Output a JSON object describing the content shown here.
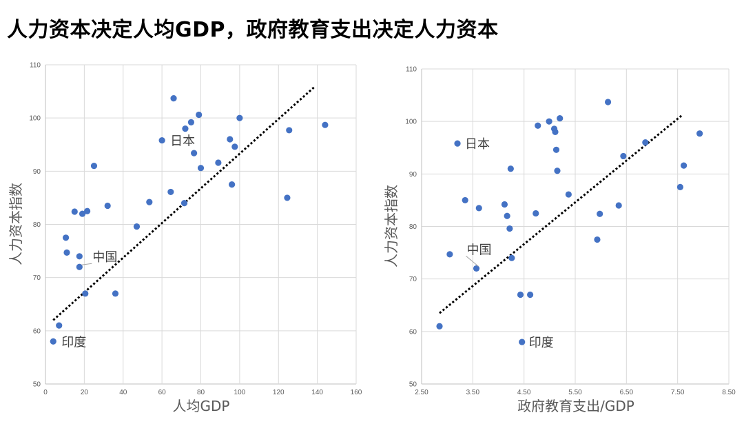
{
  "page": {
    "title": "人力资本决定人均GDP，政府教育支出决定人力资本"
  },
  "colors": {
    "point": "#4472c4",
    "trend": "#000000",
    "grid": "#d9d9d9",
    "text": "#595959"
  },
  "chart_data": [
    {
      "type": "scatter",
      "xlabel": "人均GDP",
      "ylabel": "人力资本指数",
      "xlim": [
        0,
        160
      ],
      "ylim": [
        50,
        110
      ],
      "xticks": [
        "0",
        "20",
        "40",
        "60",
        "80",
        "100",
        "120",
        "140",
        "160"
      ],
      "yticks": [
        "50",
        "60",
        "70",
        "80",
        "90",
        "100",
        "110"
      ],
      "grid": true,
      "trendline": {
        "style": "dotted",
        "from": [
          4,
          62
        ],
        "to": [
          139,
          106
        ]
      },
      "points": [
        {
          "x": 4,
          "y": 58
        },
        {
          "x": 7,
          "y": 61
        },
        {
          "x": 10.5,
          "y": 77.5
        },
        {
          "x": 11,
          "y": 74.7
        },
        {
          "x": 15,
          "y": 82.4
        },
        {
          "x": 17.5,
          "y": 74
        },
        {
          "x": 17.5,
          "y": 72
        },
        {
          "x": 19,
          "y": 82
        },
        {
          "x": 20.5,
          "y": 67
        },
        {
          "x": 21.5,
          "y": 82.5
        },
        {
          "x": 25,
          "y": 91
        },
        {
          "x": 32,
          "y": 83.5
        },
        {
          "x": 36,
          "y": 67
        },
        {
          "x": 47,
          "y": 79.6
        },
        {
          "x": 53.5,
          "y": 84.2
        },
        {
          "x": 60,
          "y": 95.8
        },
        {
          "x": 64.5,
          "y": 86.1
        },
        {
          "x": 66,
          "y": 103.7
        },
        {
          "x": 71.5,
          "y": 84
        },
        {
          "x": 72,
          "y": 98
        },
        {
          "x": 75,
          "y": 99.2
        },
        {
          "x": 76.5,
          "y": 93.4
        },
        {
          "x": 79,
          "y": 100.6
        },
        {
          "x": 80,
          "y": 90.6
        },
        {
          "x": 89,
          "y": 91.6
        },
        {
          "x": 95,
          "y": 96
        },
        {
          "x": 96,
          "y": 87.5
        },
        {
          "x": 97.5,
          "y": 94.6
        },
        {
          "x": 100,
          "y": 100
        },
        {
          "x": 124.5,
          "y": 85
        },
        {
          "x": 125.5,
          "y": 97.7
        },
        {
          "x": 144,
          "y": 98.7
        }
      ],
      "annotations": [
        {
          "label": "日本",
          "x": 60,
          "y": 95.8
        },
        {
          "label": "中国",
          "x": 17.5,
          "y": 72
        },
        {
          "label": "印度",
          "x": 4,
          "y": 58
        }
      ]
    },
    {
      "type": "scatter",
      "xlabel": "政府教育支出/GDP",
      "ylabel": "人力资本指数",
      "xlim": [
        2.5,
        8.5
      ],
      "ylim": [
        50,
        110
      ],
      "xticks": [
        "2.50",
        "3.50",
        "4.50",
        "5.50",
        "6.50",
        "7.50",
        "8.50"
      ],
      "yticks": [
        "50",
        "60",
        "70",
        "80",
        "90",
        "100",
        "110"
      ],
      "grid": true,
      "trendline": {
        "style": "dotted",
        "from": [
          2.85,
          63.5
        ],
        "to": [
          7.6,
          101.3
        ]
      },
      "points": [
        {
          "x": 2.85,
          "y": 61
        },
        {
          "x": 3.05,
          "y": 74.7
        },
        {
          "x": 3.2,
          "y": 95.8
        },
        {
          "x": 3.35,
          "y": 85
        },
        {
          "x": 3.57,
          "y": 72
        },
        {
          "x": 3.62,
          "y": 83.5
        },
        {
          "x": 4.12,
          "y": 84.2
        },
        {
          "x": 4.17,
          "y": 82
        },
        {
          "x": 4.22,
          "y": 79.6
        },
        {
          "x": 4.24,
          "y": 91
        },
        {
          "x": 4.26,
          "y": 74
        },
        {
          "x": 4.43,
          "y": 67
        },
        {
          "x": 4.46,
          "y": 58
        },
        {
          "x": 4.62,
          "y": 67
        },
        {
          "x": 4.73,
          "y": 82.5
        },
        {
          "x": 4.77,
          "y": 99.2
        },
        {
          "x": 4.99,
          "y": 100
        },
        {
          "x": 5.09,
          "y": 98.6
        },
        {
          "x": 5.11,
          "y": 98
        },
        {
          "x": 5.13,
          "y": 94.6
        },
        {
          "x": 5.15,
          "y": 90.6
        },
        {
          "x": 5.2,
          "y": 100.6
        },
        {
          "x": 5.37,
          "y": 86.1
        },
        {
          "x": 5.93,
          "y": 77.5
        },
        {
          "x": 5.98,
          "y": 82.4
        },
        {
          "x": 6.14,
          "y": 103.7
        },
        {
          "x": 6.35,
          "y": 84
        },
        {
          "x": 6.44,
          "y": 93.4
        },
        {
          "x": 6.87,
          "y": 96
        },
        {
          "x": 7.55,
          "y": 87.5
        },
        {
          "x": 7.62,
          "y": 91.6
        },
        {
          "x": 7.93,
          "y": 97.7
        }
      ],
      "annotations": [
        {
          "label": "日本",
          "x": 3.2,
          "y": 95.8
        },
        {
          "label": "中国",
          "x": 3.57,
          "y": 72
        },
        {
          "label": "印度",
          "x": 4.46,
          "y": 58
        }
      ]
    }
  ]
}
